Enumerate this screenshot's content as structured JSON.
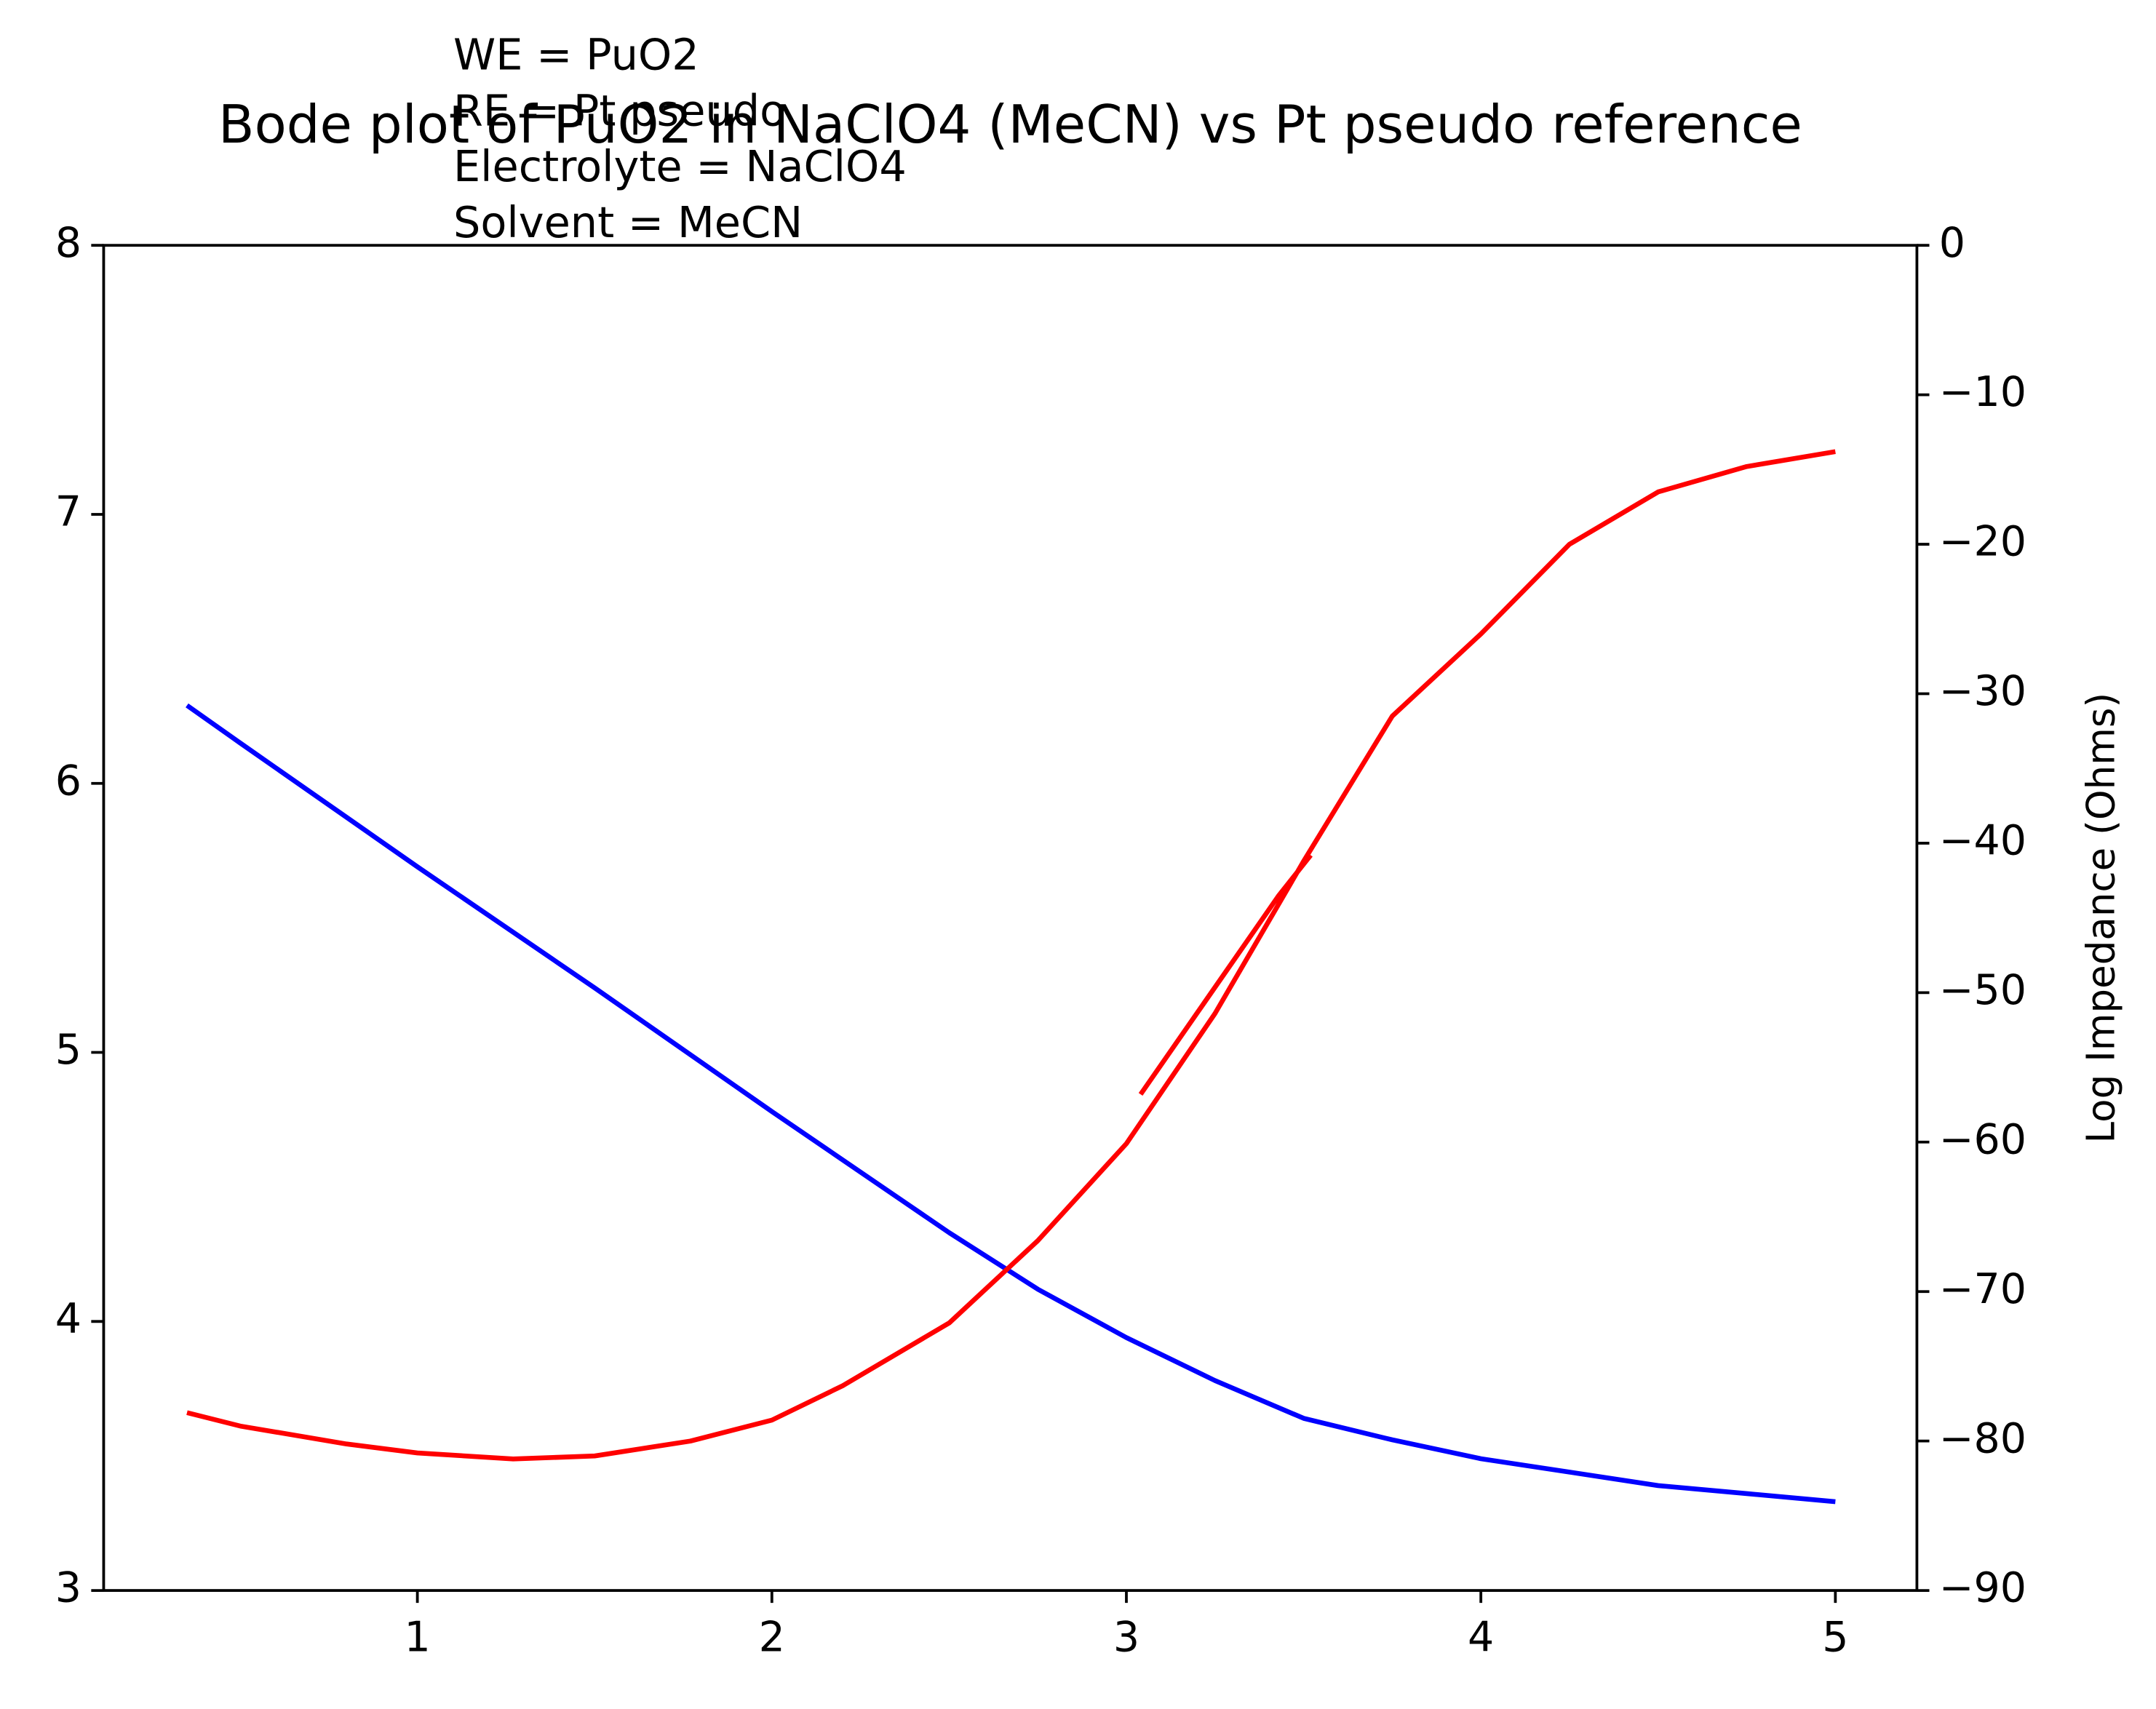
{
  "chart_data": {
    "type": "line",
    "title": "Bode plot of PuO2 in NaClO4 (MeCN) vs Pt pseudo reference",
    "annotation": [
      "WE = PuO2",
      "RE = Pt pseudo",
      "Electrolyte = NaClO4",
      "Solvent = MeCN"
    ],
    "y2label": "Log Impedance (Ohms)",
    "xlim": [
      0.115,
      5.23
    ],
    "xticks": [
      1,
      2,
      3,
      4,
      5
    ],
    "ylim": [
      3,
      8
    ],
    "yticks": [
      3,
      4,
      5,
      6,
      7,
      8
    ],
    "y2lim": [
      -90,
      0
    ],
    "y2ticks": [
      {
        "value": -90,
        "label": "−90"
      },
      {
        "value": -80,
        "label": "−80"
      },
      {
        "value": -70,
        "label": "−70"
      },
      {
        "value": -60,
        "label": "−60"
      },
      {
        "value": -50,
        "label": "−50"
      },
      {
        "value": -40,
        "label": "−40"
      },
      {
        "value": -30,
        "label": "−30"
      },
      {
        "value": -20,
        "label": "−20"
      },
      {
        "value": -10,
        "label": "−10"
      },
      0
    ],
    "series": [
      {
        "color": "#0000ff",
        "x": [
          0.35,
          0.5,
          1,
          1.5,
          2,
          2.5,
          2.75,
          3,
          3.25,
          3.5,
          3.75,
          4,
          4.25,
          4.5,
          4.75,
          5
        ],
        "values": [
          6.29,
          6.15,
          5.69,
          5.24,
          4.78,
          4.33,
          4.12,
          3.94,
          3.78,
          3.64,
          3.56,
          3.49,
          3.44,
          3.39,
          3.36,
          3.33
        ]
      },
      {
        "color": "#ff0000",
        "axis": "y2",
        "x": [
          0.35,
          0.5,
          0.8,
          1,
          1.27,
          1.5,
          1.77,
          2,
          2.2,
          2.5,
          2.75,
          3,
          3.25,
          3.5,
          3.75,
          4,
          4.25,
          4.5,
          4.75,
          5,
          3.04,
          3.04,
          3.43,
          3.52
        ],
        "values": [
          -78.1,
          -79.0,
          -80.2,
          -80.8,
          -81.2,
          -81.0,
          -80.0,
          -78.6,
          -76.3,
          -72.1,
          -66.6,
          -60.1,
          -51.4,
          -41.2,
          -31.5,
          -26.0,
          -20.0,
          -16.5,
          -14.8,
          -13.8,
          null,
          -56.8,
          -43.5,
          -40.8
        ]
      }
    ]
  }
}
